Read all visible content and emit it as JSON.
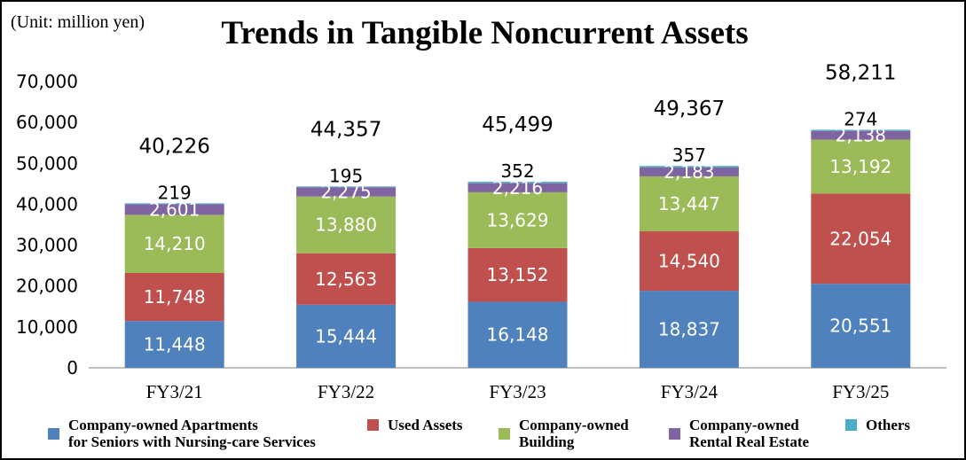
{
  "unit_label": "(Unit: million yen)",
  "title": "Trends in Tangible Noncurrent Assets",
  "chart_data": {
    "type": "bar",
    "stacked": true,
    "title": "Trends in Tangible Noncurrent Assets",
    "xlabel": "",
    "ylabel": "",
    "categories": [
      "FY3/21",
      "FY3/22",
      "FY3/23",
      "FY3/24",
      "FY3/25"
    ],
    "ylim": [
      0,
      70000
    ],
    "yticks": [
      "0",
      "10,000",
      "20,000",
      "30,000",
      "40,000",
      "50,000",
      "60,000",
      "70,000"
    ],
    "grid": false,
    "legend_position": "bottom",
    "series": [
      {
        "name": "Company-owned Apartments for Seniors with Nursing-care Services",
        "color": "#4f81bd",
        "values": [
          11448,
          15444,
          16148,
          18837,
          20551
        ],
        "labels": [
          "11,448",
          "15,444",
          "16,148",
          "18,837",
          "20,551"
        ]
      },
      {
        "name": "Used Assets",
        "color": "#c0504d",
        "values": [
          11748,
          12563,
          13152,
          14540,
          22054
        ],
        "labels": [
          "11,748",
          "12,563",
          "13,152",
          "14,540",
          "22,054"
        ]
      },
      {
        "name": "Company-owned Building",
        "color": "#9bbb59",
        "values": [
          14210,
          13880,
          13629,
          13447,
          13192
        ],
        "labels": [
          "14,210",
          "13,880",
          "13,629",
          "13,447",
          "13,192"
        ]
      },
      {
        "name": "Company-owned Rental Real Estate",
        "color": "#8064a2",
        "values": [
          2601,
          2275,
          2216,
          2183,
          2138
        ],
        "labels": [
          "2,601",
          "2,275",
          "2,216",
          "2,183",
          "2,138"
        ]
      },
      {
        "name": "Others",
        "color": "#4bacc6",
        "values": [
          219,
          195,
          352,
          357,
          274
        ],
        "labels": [
          "219",
          "195",
          "352",
          "357",
          "274"
        ]
      }
    ],
    "totals": [
      40226,
      44357,
      45499,
      49367,
      58211
    ],
    "total_labels": [
      "40,226",
      "44,357",
      "45,499",
      "49,367",
      "58,211"
    ]
  },
  "legend": [
    {
      "line1": "Company-owned Apartments",
      "line2": "for Seniors with Nursing-care Services",
      "color": "#4f81bd"
    },
    {
      "line1": "Used Assets",
      "line2": "",
      "color": "#c0504d"
    },
    {
      "line1": "Company-owned",
      "line2": "Building",
      "color": "#9bbb59"
    },
    {
      "line1": "Company-owned",
      "line2": "Rental Real Estate",
      "color": "#8064a2"
    },
    {
      "line1": "Others",
      "line2": "",
      "color": "#4bacc6"
    }
  ]
}
